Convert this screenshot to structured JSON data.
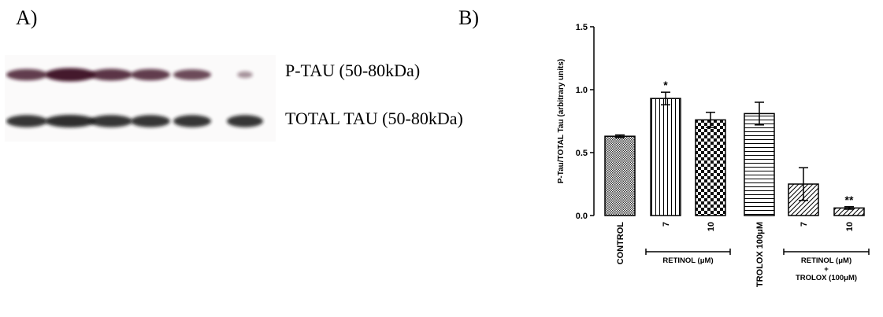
{
  "panel_a": {
    "label": "A)",
    "blot_rows": [
      {
        "name": "P-TAU (50-80kDa)",
        "band_intensities": [
          0.75,
          1.0,
          0.8,
          0.75,
          0.65,
          0.15
        ]
      },
      {
        "name": "TOTAL TAU (50-80kDa)",
        "band_intensities": [
          0.85,
          0.9,
          0.85,
          0.85,
          0.85,
          0.85
        ]
      }
    ]
  },
  "panel_b": {
    "label": "B)"
  },
  "chart_data": {
    "type": "bar",
    "ylabel": "P-Tau/TOTAL Tau (arbitrary units)",
    "ylim": [
      0,
      1.5
    ],
    "yticks": [
      "0.0",
      "0.5",
      "1.0",
      "1.5"
    ],
    "categories": [
      "CONTROL",
      "7",
      "10",
      "TROLOX 100μM",
      "7",
      "10"
    ],
    "values": [
      0.63,
      0.93,
      0.76,
      0.81,
      0.25,
      0.06
    ],
    "errors": [
      0.01,
      0.05,
      0.06,
      0.09,
      0.13,
      0.01
    ],
    "patterns": [
      "crosshatch",
      "vertical",
      "checker",
      "horizontal",
      "diagonal",
      "diagonal"
    ],
    "annotations": [
      "",
      "*",
      "",
      "",
      "",
      "**"
    ],
    "group_labels": [
      {
        "text": "RETINOL (μM)",
        "from": 1,
        "to": 2
      },
      {
        "text": "RETINOL (μM)",
        "line2": "+",
        "line3": "TROLOX (100μM)",
        "from": 4,
        "to": 5
      }
    ]
  }
}
